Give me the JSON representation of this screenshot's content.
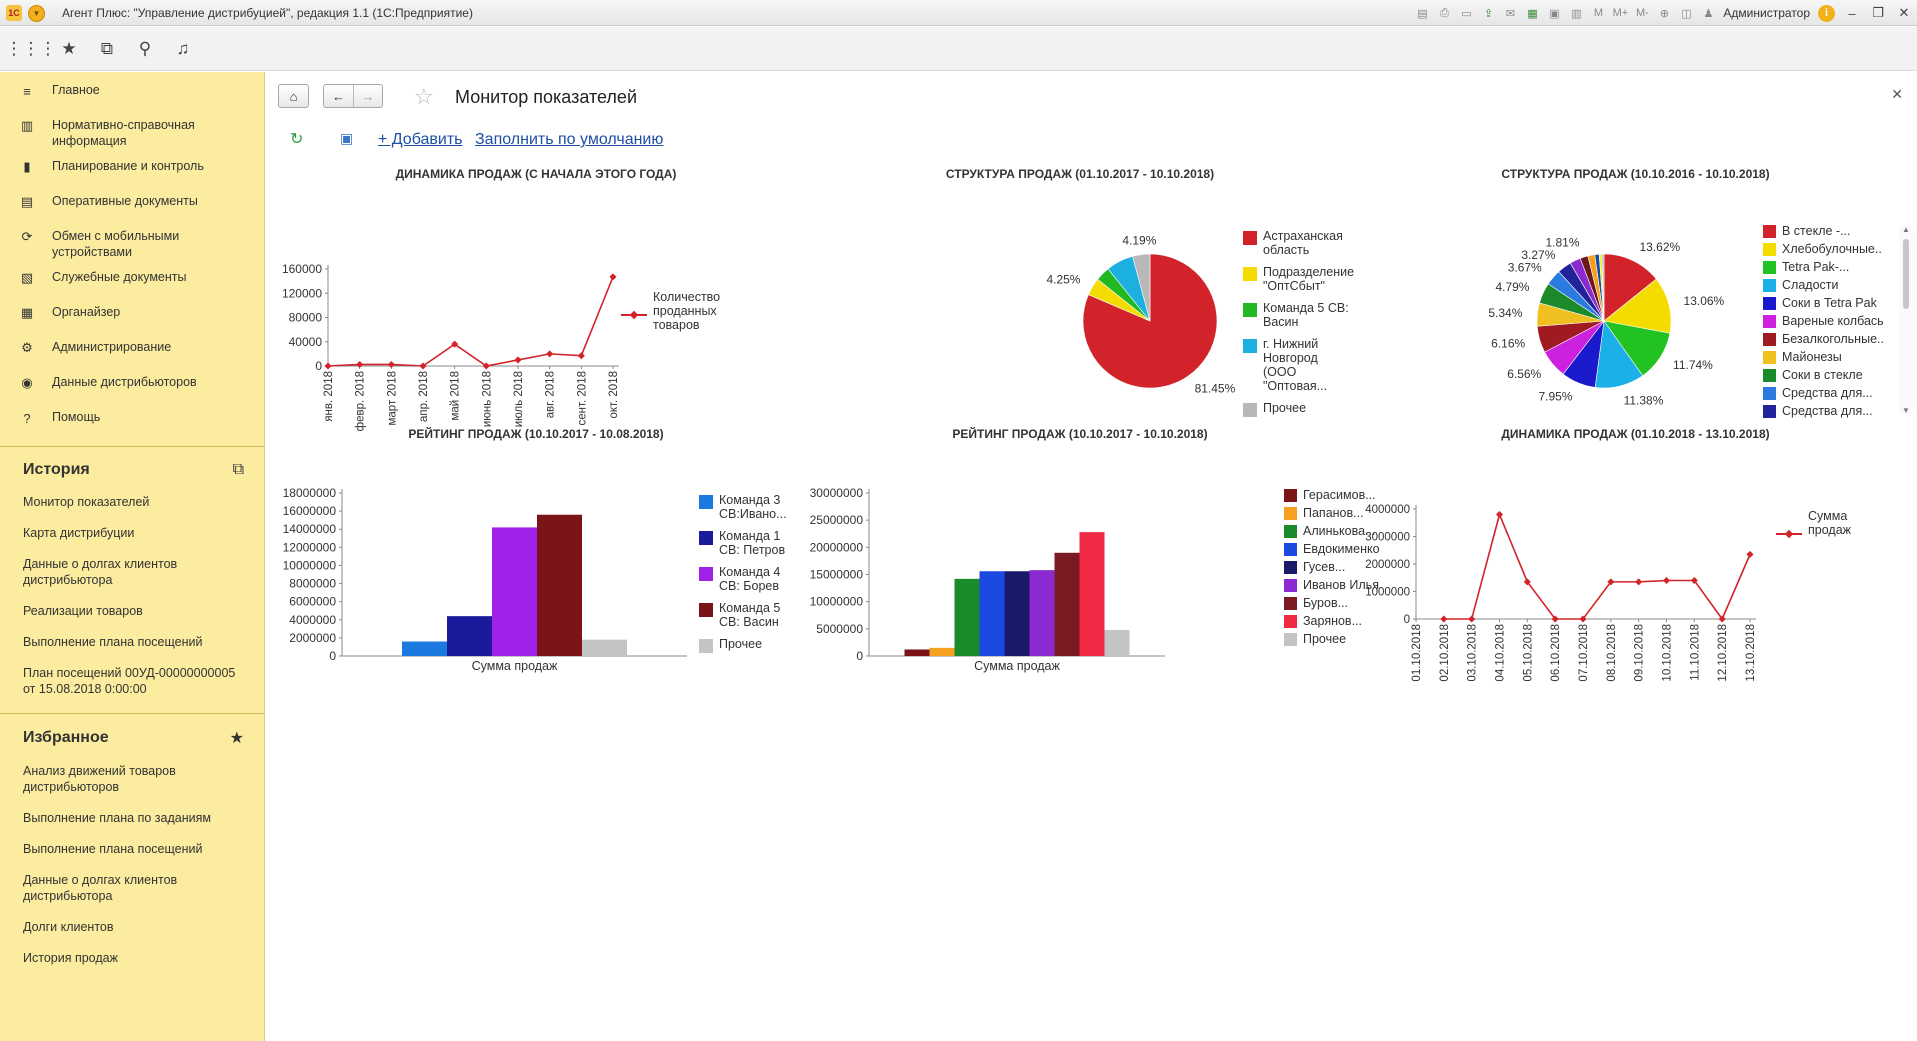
{
  "window": {
    "logo": "1С",
    "title": "Агент Плюс: \"Управление дистрибуцией\", редакция 1.1  (1С:Предприятие)",
    "user": "Администратор",
    "toolbar_icons": [
      "save-icon",
      "print-icon",
      "preview-icon",
      "upload-icon",
      "mail-icon",
      "table-icon",
      "calendar-icon",
      "calc-icon",
      "m-label",
      "m-plus-label",
      "m-minus-label",
      "zoom-icon",
      "panel-icon"
    ]
  },
  "sidebar": {
    "sections": [
      {
        "label": "Главное",
        "icon": "menu-lines-icon"
      },
      {
        "label": "Нормативно-справочная информация",
        "icon": "reference-icon"
      },
      {
        "label": "Планирование и контроль",
        "icon": "bar-chart-icon"
      },
      {
        "label": "Оперативные документы",
        "icon": "document-icon"
      },
      {
        "label": "Обмен с мобильными устройствами",
        "icon": "sync-icon"
      },
      {
        "label": "Служебные документы",
        "icon": "folder-icon"
      },
      {
        "label": "Органайзер",
        "icon": "organizer-icon"
      },
      {
        "label": "Администрирование",
        "icon": "gear-icon"
      },
      {
        "label": "Данные дистрибьюторов",
        "icon": "database-icon"
      },
      {
        "label": "Помощь",
        "icon": "question-icon"
      }
    ],
    "history": {
      "title": "История",
      "items": [
        "Монитор показателей",
        "Карта дистрибуции",
        "Данные о долгах клиентов дистрибьютора",
        "Реализации товаров",
        "Выполнение плана посещений",
        "План посещений 00УД-00000000005 от 15.08.2018 0:00:00"
      ]
    },
    "favorites": {
      "title": "Избранное",
      "items": [
        "Анализ движений товаров дистрибьюторов",
        "Выполнение плана по заданиям",
        "Выполнение плана посещений",
        "Данные о долгах клиентов дистрибьютора",
        "Долги клиентов",
        "История продаж"
      ]
    }
  },
  "page": {
    "title": "Монитор показателей",
    "add_label": "+ Добавить",
    "fill_label": "Заполнить по умолчанию"
  },
  "chart_data": [
    {
      "type": "line",
      "title": "ДИНАМИКА ПРОДАЖ (С НАЧАЛА ЭТОГО ГОДА)",
      "x": [
        "янв. 2018",
        "февр. 2018",
        "март 2018",
        "апр. 2018",
        "май 2018",
        "июнь 2018",
        "июль 2018",
        "авг. 2018",
        "сент. 2018",
        "окт. 2018"
      ],
      "series": [
        {
          "name": "Количество проданных товаров",
          "values": [
            0,
            2500,
            2500,
            0,
            36000,
            0,
            10000,
            20000,
            17000,
            147000
          ],
          "color": "#d2232a"
        }
      ],
      "ylim": [
        0,
        160000
      ],
      "yticks": [
        0,
        40000,
        80000,
        120000,
        160000
      ],
      "legend": "right"
    },
    {
      "type": "pie",
      "title": "СТРУКТУРА ПРОДАЖ (01.10.2017 - 10.10.2018)",
      "slices": [
        {
          "name": "Астраханская область",
          "value": 81.45,
          "label": "81.45%",
          "color": "#d2232a"
        },
        {
          "name": "Подразделение \"ОптСбыт\"",
          "value": 4.25,
          "label": "4.25%",
          "color": "#f5dc00"
        },
        {
          "name": "Команда 5 СВ: Васин",
          "value": 3.5,
          "label": "",
          "color": "#22b822"
        },
        {
          "name": "г. Нижний Новгород (ООО \"Оптовая...",
          "value": 6.61,
          "label": "",
          "color": "#1cb0e0"
        },
        {
          "name": "Прочее",
          "value": 4.19,
          "label": "4.19%",
          "color": "#b8b8b8"
        }
      ],
      "legend": "right"
    },
    {
      "type": "pie",
      "title": "СТРУКТУРА ПРОДАЖ (10.10.2016 - 10.10.2018)",
      "slices": [
        {
          "name": "В стекле -...",
          "value": 13.62,
          "label": "13.62%",
          "color": "#d2232a"
        },
        {
          "name": "Хлебобулочные...",
          "value": 13.06,
          "label": "13.06%",
          "color": "#f5dc00"
        },
        {
          "name": "Tetra Pak-...",
          "value": 11.74,
          "label": "11.74%",
          "color": "#22c222"
        },
        {
          "name": "Сладости",
          "value": 11.38,
          "label": "11.38%",
          "color": "#1cb0e8"
        },
        {
          "name": "Соки в Tetra Pak",
          "value": 7.95,
          "label": "7.95%",
          "color": "#1a1acc"
        },
        {
          "name": "Вареные колбасы",
          "value": 6.56,
          "label": "6.56%",
          "color": "#cc22e0"
        },
        {
          "name": "Безалкогольные...",
          "value": 6.16,
          "label": "6.16%",
          "color": "#a01a22"
        },
        {
          "name": "Майонезы",
          "value": 5.34,
          "label": "5.34%",
          "color": "#f0c020"
        },
        {
          "name": "Соки в стекле",
          "value": 4.79,
          "label": "4.79%",
          "color": "#1a8a2a"
        },
        {
          "name": "Средства для...",
          "value": 3.67,
          "label": "3.67%",
          "color": "#2a7ae0"
        },
        {
          "name": "Средства для...",
          "value": 3.27,
          "label": "3.27%",
          "color": "#22229a"
        },
        {
          "name": "",
          "value": 2.5,
          "label": "",
          "color": "#8a2ad0"
        },
        {
          "name": "",
          "value": 1.81,
          "label": "1.81%",
          "color": "#6a1a1a"
        },
        {
          "name": "",
          "value": 1.6,
          "label": "",
          "color": "#f5a020"
        },
        {
          "name": "",
          "value": 1.0,
          "label": "",
          "color": "#1a4aa0"
        },
        {
          "name": "",
          "value": 0.6,
          "label": "",
          "color": "#f0f020"
        },
        {
          "name": "",
          "value": 0.5,
          "label": "",
          "color": "#b8b8b8"
        }
      ],
      "legend": "right"
    },
    {
      "type": "bar",
      "title": "РЕЙТИНГ ПРОДАЖ (10.10.2017 - 10.08.2018)",
      "categories": [
        "Сумма продаж"
      ],
      "series": [
        {
          "name": "Команда 3 СВ:Ивано...",
          "values": [
            1600000
          ],
          "color": "#1a7ae0"
        },
        {
          "name": "Команда 1 СВ: Петров",
          "values": [
            4400000
          ],
          "color": "#1a1a9a"
        },
        {
          "name": "Команда 4 СВ: Борев",
          "values": [
            14200000
          ],
          "color": "#a022e8"
        },
        {
          "name": "Команда 5 СВ: Васин",
          "values": [
            15600000
          ],
          "color": "#7a1418"
        },
        {
          "name": "Прочее",
          "values": [
            1800000
          ],
          "color": "#c4c4c4"
        }
      ],
      "ylim": [
        0,
        18000000
      ],
      "yticks": [
        0,
        2000000,
        4000000,
        6000000,
        8000000,
        10000000,
        12000000,
        14000000,
        16000000,
        18000000
      ],
      "legend": "right"
    },
    {
      "type": "bar",
      "title": "РЕЙТИНГ ПРОДАЖ (10.10.2017 - 10.10.2018)",
      "categories": [
        "Сумма продаж"
      ],
      "series": [
        {
          "name": "Герасимов...",
          "values": [
            1200000
          ],
          "color": "#7a1418"
        },
        {
          "name": "Папанов...",
          "values": [
            1500000
          ],
          "color": "#f5a020"
        },
        {
          "name": "Алинькова...",
          "values": [
            14200000
          ],
          "color": "#1a8a2a"
        },
        {
          "name": "Евдокименко",
          "values": [
            15600000
          ],
          "color": "#1a4ae0"
        },
        {
          "name": "Гусев...",
          "values": [
            15600000
          ],
          "color": "#1a1a6a"
        },
        {
          "name": "Иванов Илья",
          "values": [
            15800000
          ],
          "color": "#8a2ad0"
        },
        {
          "name": "Буров...",
          "values": [
            19000000
          ],
          "color": "#7a1a22"
        },
        {
          "name": "Зарянов...",
          "values": [
            22800000
          ],
          "color": "#f02a44"
        },
        {
          "name": "Прочее",
          "values": [
            4800000
          ],
          "color": "#c4c4c4"
        }
      ],
      "ylim": [
        0,
        30000000
      ],
      "yticks": [
        0,
        5000000,
        10000000,
        15000000,
        20000000,
        25000000,
        30000000
      ],
      "legend": "right"
    },
    {
      "type": "line",
      "title": "ДИНАМИКА ПРОДАЖ (01.10.2018 - 13.10.2018)",
      "x": [
        "01.10.2018",
        "02.10.2018",
        "03.10.2018",
        "04.10.2018",
        "05.10.2018",
        "06.10.2018",
        "07.10.2018",
        "08.10.2018",
        "09.10.2018",
        "10.10.2018",
        "11.10.2018",
        "12.10.2018",
        "13.10.2018"
      ],
      "series": [
        {
          "name": "Сумма продаж",
          "values": [
            null,
            0,
            0,
            3800000,
            1350000,
            0,
            0,
            1350000,
            1350000,
            1400000,
            1400000,
            0,
            2350000
          ],
          "color": "#d2232a"
        }
      ],
      "ylim": [
        0,
        4000000
      ],
      "yticks": [
        0,
        1000000,
        2000000,
        3000000,
        4000000
      ],
      "legend": "right"
    }
  ]
}
